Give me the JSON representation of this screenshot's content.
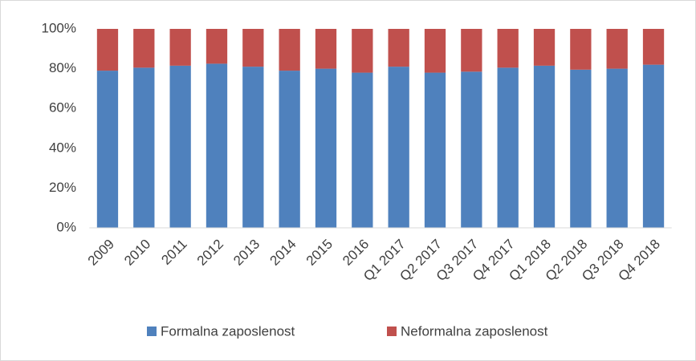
{
  "chart_data": {
    "type": "stacked_bar",
    "categories": [
      "2009",
      "2010",
      "2011",
      "2012",
      "2013",
      "2014",
      "2015",
      "2016",
      "Q1 2017",
      "Q2 2017",
      "Q3 2017",
      "Q4 2017",
      "Q1 2018",
      "Q2 2018",
      "Q3 2018",
      "Q4 2018"
    ],
    "series": [
      {
        "name": "Formalna zaposlenost",
        "color": "#4f81bd",
        "values": [
          79,
          80.5,
          81.5,
          82.5,
          81,
          79,
          80,
          78,
          81,
          78,
          78.5,
          80.5,
          81.5,
          79.5,
          80,
          82
        ]
      },
      {
        "name": "Neformalna zaposlenost",
        "color": "#c0504d",
        "values": [
          21,
          19.5,
          18.5,
          17.5,
          19,
          21,
          20,
          22,
          19,
          22,
          21.5,
          19.5,
          18.5,
          20.5,
          20,
          18
        ]
      }
    ],
    "ylim": [
      0,
      100
    ],
    "yticks": [
      {
        "value": 0,
        "label": "0%"
      },
      {
        "value": 20,
        "label": "20%"
      },
      {
        "value": 40,
        "label": "40%"
      },
      {
        "value": 60,
        "label": "60%"
      },
      {
        "value": 80,
        "label": "80%"
      },
      {
        "value": 100,
        "label": "100%"
      }
    ],
    "grid": false,
    "legend": "bottom"
  }
}
